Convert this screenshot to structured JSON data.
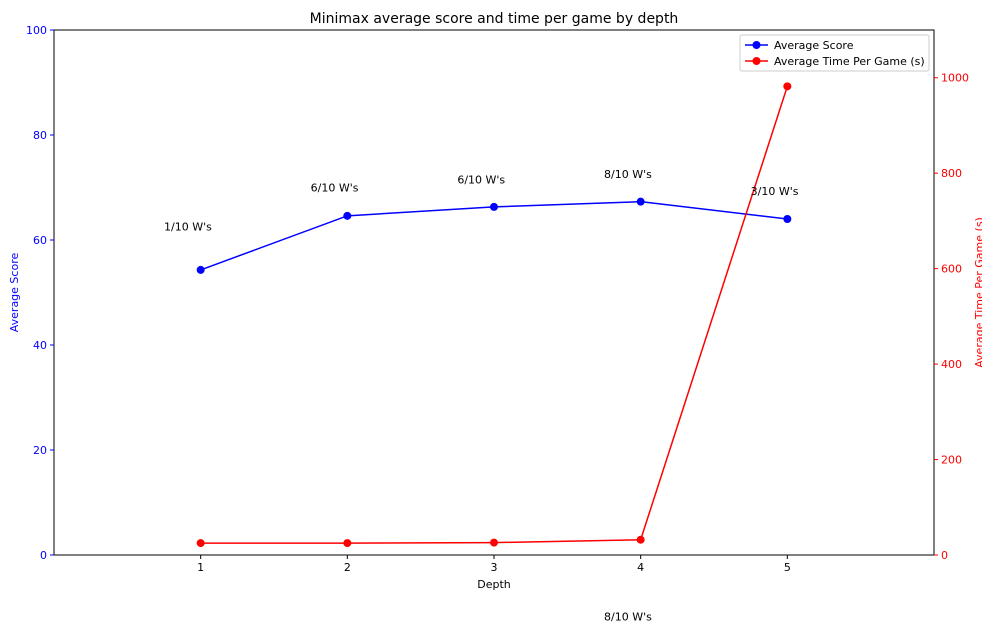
{
  "chart_data": {
    "type": "line",
    "title": "Minimax average score and time per game by depth",
    "xlabel": "Depth",
    "ylabel_left": "Average Score",
    "ylabel_right": "Average Time Per Game (s)",
    "x": [
      1,
      2,
      3,
      4,
      5
    ],
    "x_ticks": [
      1,
      2,
      3,
      4,
      5
    ],
    "xlim": [
      0,
      6
    ],
    "ylim_left": [
      0,
      100
    ],
    "yticks_left": [
      0,
      20,
      40,
      60,
      80,
      100
    ],
    "ylim_right": [
      0,
      1100
    ],
    "yticks_right": [
      0,
      200,
      400,
      600,
      800,
      1000
    ],
    "grid": false,
    "legend_position": "top-right",
    "series": [
      {
        "name": "Average Score",
        "axis": "left",
        "color": "#0000ff",
        "values": [
          54.3,
          64.6,
          66.3,
          67.3,
          64.0
        ]
      },
      {
        "name": "Average Time Per Game (s)",
        "axis": "right",
        "color": "#ff0000",
        "values": [
          25,
          25,
          26,
          32,
          982
        ]
      }
    ],
    "annotations": [
      {
        "text": "1/10 W's",
        "x": 0.75,
        "y": 61.8
      },
      {
        "text": "6/10 W's",
        "x": 1.75,
        "y": 69.2
      },
      {
        "text": "6/10 W's",
        "x": 2.75,
        "y": 70.8
      },
      {
        "text": "8/10 W's",
        "x": 3.75,
        "y": 71.8
      },
      {
        "text": "3/10 W's",
        "x": 4.75,
        "y": 68.6
      },
      {
        "text": "8/10 W's",
        "x": 3.75,
        "y": -12.5
      }
    ]
  }
}
